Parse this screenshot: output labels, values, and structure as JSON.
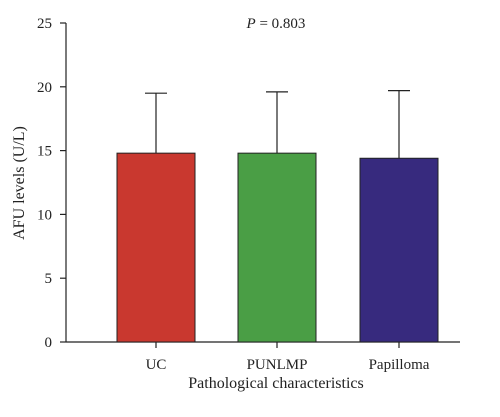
{
  "chart_data": {
    "type": "bar",
    "title": "",
    "xlabel": "Pathological characteristics",
    "ylabel": "AFU levels (U/L)",
    "ylim": [
      0,
      25
    ],
    "yticks": [
      "0",
      "5",
      "10",
      "15",
      "20",
      "25"
    ],
    "categories": [
      "UC",
      "PUNLMP",
      "Papilloma"
    ],
    "values": [
      14.8,
      14.8,
      14.4
    ],
    "error_upper": [
      19.5,
      19.6,
      19.7
    ],
    "colors": [
      "#c9382f",
      "#4a9e45",
      "#372a7e"
    ],
    "annotation": {
      "p_label": "P",
      "p_value": " = 0.803"
    },
    "grid": false,
    "legend": "none"
  }
}
